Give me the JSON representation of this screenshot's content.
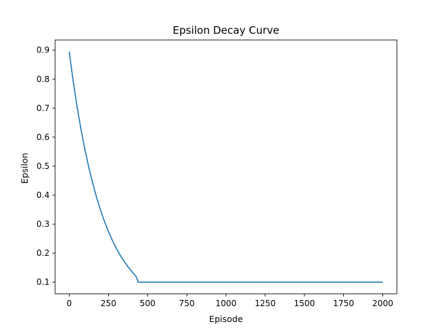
{
  "chart_data": {
    "type": "line",
    "title": "Epsilon Decay Curve",
    "xlabel": "Episode",
    "ylabel": "Epsilon",
    "xlim": [
      -90,
      2090
    ],
    "ylim": [
      0.06,
      0.935
    ],
    "xticks": [
      0,
      250,
      500,
      750,
      1000,
      1250,
      1500,
      1750,
      2000
    ],
    "xtick_labels": [
      "0",
      "250",
      "500",
      "750",
      "1000",
      "1250",
      "1500",
      "1750",
      "2000"
    ],
    "yticks": [
      0.1,
      0.2,
      0.3,
      0.4,
      0.5,
      0.6,
      0.7,
      0.8,
      0.9
    ],
    "ytick_labels": [
      "0.1",
      "0.2",
      "0.3",
      "0.4",
      "0.5",
      "0.6",
      "0.7",
      "0.8",
      "0.9"
    ],
    "grid": false,
    "series": [
      {
        "color": "#1f77b4",
        "x": [
          0,
          25,
          50,
          75,
          100,
          125,
          150,
          175,
          200,
          225,
          250,
          275,
          300,
          325,
          350,
          375,
          400,
          425,
          440,
          500,
          750,
          1000,
          1250,
          1500,
          1750,
          2000
        ],
        "y": [
          0.895,
          0.793,
          0.705,
          0.627,
          0.557,
          0.495,
          0.44,
          0.391,
          0.348,
          0.309,
          0.275,
          0.244,
          0.217,
          0.193,
          0.172,
          0.153,
          0.136,
          0.121,
          0.1,
          0.1,
          0.1,
          0.1,
          0.1,
          0.1,
          0.1,
          0.1
        ]
      }
    ]
  }
}
